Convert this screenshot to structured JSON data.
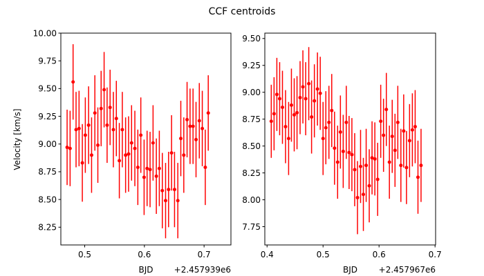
{
  "title": "CCF centroids",
  "ylabel": "Velocity [km/s]",
  "colors": {
    "series": "#ff0000",
    "axes": "#000000"
  },
  "chart_data": [
    {
      "type": "scatter",
      "errorbars": true,
      "xlabel": "BJD",
      "offset_label": "+2.457939e6",
      "xlim": [
        0.46,
        0.745
      ],
      "ylim": [
        8.09,
        10.0
      ],
      "xticks": [
        0.5,
        0.6,
        0.7
      ],
      "xtick_labels": [
        "0.5",
        "0.6",
        "0.7"
      ],
      "yticks": [
        8.25,
        8.5,
        8.75,
        9.0,
        9.25,
        9.5,
        9.75,
        10.0
      ],
      "ytick_labels": [
        "8.25",
        "8.50",
        "8.75",
        "9.00",
        "9.25",
        "9.50",
        "9.75",
        "10.00"
      ],
      "grid": false,
      "points": [
        {
          "x": 0.4705,
          "y": 8.97,
          "err": 0.34
        },
        {
          "x": 0.4755,
          "y": 8.96,
          "err": 0.34
        },
        {
          "x": 0.4805,
          "y": 9.56,
          "err": 0.34
        },
        {
          "x": 0.4855,
          "y": 9.13,
          "err": 0.34
        },
        {
          "x": 0.4905,
          "y": 9.14,
          "err": 0.34
        },
        {
          "x": 0.496,
          "y": 8.83,
          "err": 0.35
        },
        {
          "x": 0.501,
          "y": 9.08,
          "err": 0.34
        },
        {
          "x": 0.5065,
          "y": 9.17,
          "err": 0.35
        },
        {
          "x": 0.5115,
          "y": 8.9,
          "err": 0.34
        },
        {
          "x": 0.517,
          "y": 9.28,
          "err": 0.34
        },
        {
          "x": 0.522,
          "y": 8.99,
          "err": 0.34
        },
        {
          "x": 0.5275,
          "y": 9.32,
          "err": 0.34
        },
        {
          "x": 0.5325,
          "y": 9.49,
          "err": 0.34
        },
        {
          "x": 0.5375,
          "y": 9.17,
          "err": 0.34
        },
        {
          "x": 0.5425,
          "y": 9.33,
          "err": 0.34
        },
        {
          "x": 0.548,
          "y": 9.13,
          "err": 0.34
        },
        {
          "x": 0.553,
          "y": 9.23,
          "err": 0.34
        },
        {
          "x": 0.558,
          "y": 8.85,
          "err": 0.34
        },
        {
          "x": 0.563,
          "y": 9.13,
          "err": 0.34
        },
        {
          "x": 0.5685,
          "y": 8.9,
          "err": 0.34
        },
        {
          "x": 0.5735,
          "y": 8.91,
          "err": 0.34
        },
        {
          "x": 0.5785,
          "y": 9.01,
          "err": 0.34
        },
        {
          "x": 0.584,
          "y": 8.96,
          "err": 0.34
        },
        {
          "x": 0.589,
          "y": 8.79,
          "err": 0.34
        },
        {
          "x": 0.594,
          "y": 9.08,
          "err": 0.34
        },
        {
          "x": 0.5995,
          "y": 8.7,
          "err": 0.34
        },
        {
          "x": 0.6045,
          "y": 8.78,
          "err": 0.34
        },
        {
          "x": 0.6095,
          "y": 8.77,
          "err": 0.34
        },
        {
          "x": 0.6145,
          "y": 9.01,
          "err": 0.34
        },
        {
          "x": 0.62,
          "y": 8.71,
          "err": 0.34
        },
        {
          "x": 0.625,
          "y": 8.78,
          "err": 0.34
        },
        {
          "x": 0.63,
          "y": 8.58,
          "err": 0.34
        },
        {
          "x": 0.6355,
          "y": 8.49,
          "err": 0.34
        },
        {
          "x": 0.6405,
          "y": 8.59,
          "err": 0.34
        },
        {
          "x": 0.6455,
          "y": 8.92,
          "err": 0.34
        },
        {
          "x": 0.6505,
          "y": 8.59,
          "err": 0.34
        },
        {
          "x": 0.656,
          "y": 8.49,
          "err": 0.34
        },
        {
          "x": 0.661,
          "y": 9.05,
          "err": 0.34
        },
        {
          "x": 0.666,
          "y": 8.9,
          "err": 0.34
        },
        {
          "x": 0.6715,
          "y": 9.22,
          "err": 0.34
        },
        {
          "x": 0.6765,
          "y": 9.16,
          "err": 0.34
        },
        {
          "x": 0.6815,
          "y": 9.16,
          "err": 0.34
        },
        {
          "x": 0.6865,
          "y": 9.04,
          "err": 0.34
        },
        {
          "x": 0.692,
          "y": 9.21,
          "err": 0.34
        },
        {
          "x": 0.697,
          "y": 9.14,
          "err": 0.34
        },
        {
          "x": 0.702,
          "y": 8.79,
          "err": 0.34
        },
        {
          "x": 0.707,
          "y": 9.28,
          "err": 0.34
        }
      ]
    },
    {
      "type": "scatter",
      "errorbars": true,
      "xlabel": "BJD",
      "offset_label": "+2.457967e6",
      "xlim": [
        0.396,
        0.701
      ],
      "ylim": [
        7.58,
        9.55
      ],
      "xticks": [
        0.4,
        0.5,
        0.6,
        0.7
      ],
      "xtick_labels": [
        "0.4",
        "0.5",
        "0.6",
        "0.7"
      ],
      "yticks": [
        7.75,
        8.0,
        8.25,
        8.5,
        8.75,
        9.0,
        9.25,
        9.5
      ],
      "ytick_labels": [
        "7.75",
        "8.00",
        "8.25",
        "8.50",
        "8.75",
        "9.00",
        "9.25",
        "9.50"
      ],
      "grid": false,
      "points": [
        {
          "x": 0.4075,
          "y": 8.73,
          "err": 0.34
        },
        {
          "x": 0.4125,
          "y": 8.8,
          "err": 0.34
        },
        {
          "x": 0.4175,
          "y": 8.98,
          "err": 0.34
        },
        {
          "x": 0.4225,
          "y": 8.94,
          "err": 0.34
        },
        {
          "x": 0.4275,
          "y": 8.86,
          "err": 0.34
        },
        {
          "x": 0.433,
          "y": 8.68,
          "err": 0.34
        },
        {
          "x": 0.4385,
          "y": 8.57,
          "err": 0.34
        },
        {
          "x": 0.4435,
          "y": 8.88,
          "err": 0.34
        },
        {
          "x": 0.4485,
          "y": 8.79,
          "err": 0.34
        },
        {
          "x": 0.4535,
          "y": 8.81,
          "err": 0.34
        },
        {
          "x": 0.459,
          "y": 8.95,
          "err": 0.34
        },
        {
          "x": 0.464,
          "y": 9.05,
          "err": 0.34
        },
        {
          "x": 0.469,
          "y": 8.94,
          "err": 0.34
        },
        {
          "x": 0.4745,
          "y": 9.08,
          "err": 0.34
        },
        {
          "x": 0.4795,
          "y": 8.77,
          "err": 0.34
        },
        {
          "x": 0.4845,
          "y": 8.92,
          "err": 0.34
        },
        {
          "x": 0.49,
          "y": 9.03,
          "err": 0.34
        },
        {
          "x": 0.495,
          "y": 8.99,
          "err": 0.34
        },
        {
          "x": 0.5,
          "y": 8.57,
          "err": 0.34
        },
        {
          "x": 0.505,
          "y": 8.67,
          "err": 0.34
        },
        {
          "x": 0.5105,
          "y": 8.72,
          "err": 0.34
        },
        {
          "x": 0.5155,
          "y": 8.83,
          "err": 0.34
        },
        {
          "x": 0.5205,
          "y": 8.48,
          "err": 0.34
        },
        {
          "x": 0.526,
          "y": 8.35,
          "err": 0.34
        },
        {
          "x": 0.531,
          "y": 8.63,
          "err": 0.34
        },
        {
          "x": 0.536,
          "y": 8.45,
          "err": 0.34
        },
        {
          "x": 0.5415,
          "y": 8.72,
          "err": 0.34
        },
        {
          "x": 0.5465,
          "y": 8.44,
          "err": 0.34
        },
        {
          "x": 0.5515,
          "y": 8.42,
          "err": 0.34
        },
        {
          "x": 0.5565,
          "y": 8.28,
          "err": 0.34
        },
        {
          "x": 0.5615,
          "y": 8.02,
          "err": 0.34
        },
        {
          "x": 0.567,
          "y": 8.31,
          "err": 0.34
        },
        {
          "x": 0.572,
          "y": 8.05,
          "err": 0.34
        },
        {
          "x": 0.577,
          "y": 8.32,
          "err": 0.34
        },
        {
          "x": 0.5825,
          "y": 8.13,
          "err": 0.34
        },
        {
          "x": 0.5875,
          "y": 8.39,
          "err": 0.34
        },
        {
          "x": 0.5925,
          "y": 8.38,
          "err": 0.34
        },
        {
          "x": 0.5975,
          "y": 8.19,
          "err": 0.34
        },
        {
          "x": 0.603,
          "y": 8.73,
          "err": 0.34
        },
        {
          "x": 0.608,
          "y": 8.6,
          "err": 0.34
        },
        {
          "x": 0.613,
          "y": 8.84,
          "err": 0.34
        },
        {
          "x": 0.6185,
          "y": 8.35,
          "err": 0.34
        },
        {
          "x": 0.6235,
          "y": 8.59,
          "err": 0.34
        },
        {
          "x": 0.6285,
          "y": 8.46,
          "err": 0.34
        },
        {
          "x": 0.6335,
          "y": 8.72,
          "err": 0.34
        },
        {
          "x": 0.639,
          "y": 8.32,
          "err": 0.34
        },
        {
          "x": 0.644,
          "y": 8.64,
          "err": 0.34
        },
        {
          "x": 0.649,
          "y": 8.3,
          "err": 0.34
        },
        {
          "x": 0.6545,
          "y": 8.55,
          "err": 0.34
        },
        {
          "x": 0.6595,
          "y": 8.65,
          "err": 0.34
        },
        {
          "x": 0.6645,
          "y": 8.68,
          "err": 0.34
        },
        {
          "x": 0.6695,
          "y": 8.21,
          "err": 0.34
        },
        {
          "x": 0.675,
          "y": 8.32,
          "err": 0.34
        }
      ]
    }
  ]
}
